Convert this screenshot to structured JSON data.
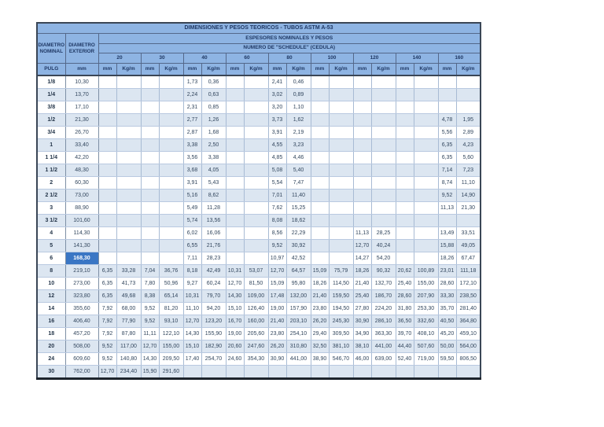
{
  "colors": {
    "header_bg": "#8EB4E3",
    "row_alt_bg": "#DCE6F1",
    "selection_bg": "#3A76C4",
    "header_text": "#1F3864",
    "body_text": "#33475E"
  },
  "table": {
    "title": "DIMENSIONES Y PESOS TEORICOS - TUBOS ASTM A-53",
    "header": {
      "diametro_nominal": "DIAMETRO NOMINAL",
      "diametro_exterior": "DIAMETRO EXTERIOR",
      "espesores": "ESPESORES NOMINALES Y PESOS",
      "cedula": "NUMERO DE \"SCHEDULE\" (CEDULA)",
      "units": {
        "pulg": "PULG",
        "od_mm": "mm",
        "mm": "mm",
        "kg": "Kg/m"
      }
    },
    "schedules": [
      "20",
      "30",
      "40",
      "60",
      "80",
      "100",
      "120",
      "140",
      "160"
    ],
    "selection": {
      "value": "168,30",
      "row": "6",
      "column": "DIAMETRO EXTERIOR"
    },
    "rows": [
      {
        "nominal": "1/8",
        "od": "10,30",
        "v": [
          "",
          "",
          "",
          "",
          "1,73",
          "0,36",
          "",
          "",
          "2,41",
          "0,46",
          "",
          "",
          "",
          "",
          "",
          "",
          "",
          ""
        ]
      },
      {
        "nominal": "1/4",
        "od": "13,70",
        "v": [
          "",
          "",
          "",
          "",
          "2,24",
          "0,63",
          "",
          "",
          "3,02",
          "0,89",
          "",
          "",
          "",
          "",
          "",
          "",
          "",
          ""
        ]
      },
      {
        "nominal": "3/8",
        "od": "17,10",
        "v": [
          "",
          "",
          "",
          "",
          "2,31",
          "0,85",
          "",
          "",
          "3,20",
          "1,10",
          "",
          "",
          "",
          "",
          "",
          "",
          "",
          ""
        ]
      },
      {
        "nominal": "1/2",
        "od": "21,30",
        "v": [
          "",
          "",
          "",
          "",
          "2,77",
          "1,26",
          "",
          "",
          "3,73",
          "1,62",
          "",
          "",
          "",
          "",
          "",
          "",
          "4,78",
          "1,95"
        ]
      },
      {
        "nominal": "3/4",
        "od": "26,70",
        "v": [
          "",
          "",
          "",
          "",
          "2,87",
          "1,68",
          "",
          "",
          "3,91",
          "2,19",
          "",
          "",
          "",
          "",
          "",
          "",
          "5,56",
          "2,89"
        ]
      },
      {
        "nominal": "1",
        "od": "33,40",
        "v": [
          "",
          "",
          "",
          "",
          "3,38",
          "2,50",
          "",
          "",
          "4,55",
          "3,23",
          "",
          "",
          "",
          "",
          "",
          "",
          "6,35",
          "4,23"
        ]
      },
      {
        "nominal": "1 1/4",
        "od": "42,20",
        "v": [
          "",
          "",
          "",
          "",
          "3,56",
          "3,38",
          "",
          "",
          "4,85",
          "4,46",
          "",
          "",
          "",
          "",
          "",
          "",
          "6,35",
          "5,60"
        ]
      },
      {
        "nominal": "1 1/2",
        "od": "48,30",
        "v": [
          "",
          "",
          "",
          "",
          "3,68",
          "4,05",
          "",
          "",
          "5,08",
          "5,40",
          "",
          "",
          "",
          "",
          "",
          "",
          "7,14",
          "7,23"
        ]
      },
      {
        "nominal": "2",
        "od": "60,30",
        "v": [
          "",
          "",
          "",
          "",
          "3,91",
          "5,43",
          "",
          "",
          "5,54",
          "7,47",
          "",
          "",
          "",
          "",
          "",
          "",
          "8,74",
          "11,10"
        ]
      },
      {
        "nominal": "2 1/2",
        "od": "73,00",
        "v": [
          "",
          "",
          "",
          "",
          "5,16",
          "8,62",
          "",
          "",
          "7,01",
          "11,40",
          "",
          "",
          "",
          "",
          "",
          "",
          "9,52",
          "14,90"
        ]
      },
      {
        "nominal": "3",
        "od": "88,90",
        "v": [
          "",
          "",
          "",
          "",
          "5,49",
          "11,28",
          "",
          "",
          "7,62",
          "15,25",
          "",
          "",
          "",
          "",
          "",
          "",
          "11,13",
          "21,30"
        ]
      },
      {
        "nominal": "3 1/2",
        "od": "101,60",
        "v": [
          "",
          "",
          "",
          "",
          "5,74",
          "13,56",
          "",
          "",
          "8,08",
          "18,62",
          "",
          "",
          "",
          "",
          "",
          "",
          "",
          ""
        ]
      },
      {
        "nominal": "4",
        "od": "114,30",
        "v": [
          "",
          "",
          "",
          "",
          "6,02",
          "16,06",
          "",
          "",
          "8,56",
          "22,29",
          "",
          "",
          "11,13",
          "28,25",
          "",
          "",
          "13,49",
          "33,51"
        ]
      },
      {
        "nominal": "5",
        "od": "141,30",
        "v": [
          "",
          "",
          "",
          "",
          "6,55",
          "21,76",
          "",
          "",
          "9,52",
          "30,92",
          "",
          "",
          "12,70",
          "40,24",
          "",
          "",
          "15,88",
          "49,05"
        ]
      },
      {
        "nominal": "6",
        "od": "168,30",
        "selected": true,
        "v": [
          "",
          "",
          "",
          "",
          "7,11",
          "28,23",
          "",
          "",
          "10,97",
          "42,52",
          "",
          "",
          "14,27",
          "54,20",
          "",
          "",
          "18,26",
          "67,47"
        ]
      },
      {
        "nominal": "8",
        "od": "219,10",
        "v": [
          "6,35",
          "33,28",
          "7,04",
          "36,76",
          "8,18",
          "42,49",
          "10,31",
          "53,07",
          "12,70",
          "64,57",
          "15,09",
          "75,79",
          "18,26",
          "90,32",
          "20,62",
          "100,89",
          "23,01",
          "111,18"
        ]
      },
      {
        "nominal": "10",
        "od": "273,00",
        "v": [
          "6,35",
          "41,73",
          "7,80",
          "50,96",
          "9,27",
          "60,24",
          "12,70",
          "81,50",
          "15,09",
          "95,80",
          "18,26",
          "114,50",
          "21,40",
          "132,70",
          "25,40",
          "155,00",
          "28,60",
          "172,10"
        ]
      },
      {
        "nominal": "12",
        "od": "323,80",
        "v": [
          "6,35",
          "49,68",
          "8,38",
          "65,14",
          "10,31",
          "79,70",
          "14,30",
          "109,00",
          "17,48",
          "132,00",
          "21,40",
          "159,50",
          "25,40",
          "186,70",
          "28,60",
          "207,90",
          "33,30",
          "238,50"
        ]
      },
      {
        "nominal": "14",
        "od": "355,60",
        "v": [
          "7,92",
          "68,00",
          "9,52",
          "81,20",
          "11,10",
          "94,20",
          "15,10",
          "126,40",
          "19,00",
          "157,90",
          "23,80",
          "194,50",
          "27,80",
          "224,20",
          "31,80",
          "253,30",
          "35,70",
          "281,40"
        ]
      },
      {
        "nominal": "16",
        "od": "406,40",
        "v": [
          "7,92",
          "77,90",
          "9,52",
          "93,10",
          "12,70",
          "123,20",
          "16,70",
          "160,00",
          "21,40",
          "203,10",
          "26,20",
          "245,30",
          "30,90",
          "286,10",
          "36,50",
          "332,60",
          "40,50",
          "364,80"
        ]
      },
      {
        "nominal": "18",
        "od": "457,20",
        "v": [
          "7,92",
          "87,80",
          "11,11",
          "122,10",
          "14,30",
          "155,90",
          "19,00",
          "205,60",
          "23,80",
          "254,10",
          "29,40",
          "309,50",
          "34,90",
          "363,30",
          "39,70",
          "408,10",
          "45,20",
          "459,10"
        ]
      },
      {
        "nominal": "20",
        "od": "508,00",
        "v": [
          "9,52",
          "117,00",
          "12,70",
          "155,00",
          "15,10",
          "182,90",
          "20,60",
          "247,60",
          "26,20",
          "310,80",
          "32,50",
          "381,10",
          "38,10",
          "441,00",
          "44,40",
          "507,60",
          "50,00",
          "564,00"
        ]
      },
      {
        "nominal": "24",
        "od": "609,60",
        "v": [
          "9,52",
          "140,80",
          "14,30",
          "209,50",
          "17,40",
          "254,70",
          "24,60",
          "354,30",
          "30,90",
          "441,00",
          "38,90",
          "546,70",
          "46,00",
          "639,00",
          "52,40",
          "719,00",
          "59,50",
          "806,50"
        ]
      },
      {
        "nominal": "30",
        "od": "762,00",
        "v": [
          "12,70",
          "234,40",
          "15,90",
          "291,60",
          "",
          "",
          "",
          "",
          "",
          "",
          "",
          "",
          "",
          "",
          "",
          "",
          "",
          ""
        ]
      }
    ]
  }
}
